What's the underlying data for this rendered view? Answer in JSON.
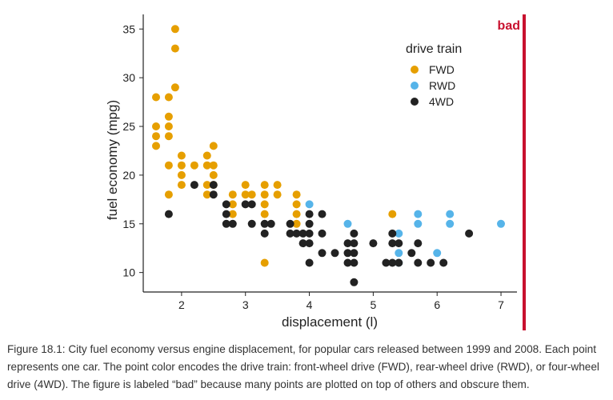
{
  "chart_data": {
    "type": "scatter",
    "title": "",
    "xlabel": "displacement (l)",
    "ylabel": "fuel economy (mpg)",
    "xlim": [
      1.4,
      7.25
    ],
    "ylim": [
      8,
      36.5
    ],
    "xticks": [
      2,
      3,
      4,
      5,
      6,
      7
    ],
    "yticks": [
      10,
      15,
      20,
      25,
      30,
      35
    ],
    "grid": false,
    "legend": {
      "title": "drive train",
      "position": "top-right"
    },
    "badge": {
      "label": "bad",
      "color": "#c8102e"
    },
    "series": [
      {
        "name": "FWD",
        "color": "#e69f00",
        "points": [
          [
            1.6,
            28
          ],
          [
            1.6,
            25
          ],
          [
            1.6,
            24
          ],
          [
            1.6,
            23
          ],
          [
            1.8,
            28
          ],
          [
            1.8,
            26
          ],
          [
            1.8,
            25
          ],
          [
            1.8,
            24
          ],
          [
            1.8,
            21
          ],
          [
            1.8,
            18
          ],
          [
            1.9,
            35
          ],
          [
            1.9,
            33
          ],
          [
            1.9,
            29
          ],
          [
            2.0,
            22
          ],
          [
            2.0,
            21
          ],
          [
            2.0,
            20
          ],
          [
            2.0,
            19
          ],
          [
            2.2,
            21
          ],
          [
            2.4,
            22
          ],
          [
            2.4,
            21
          ],
          [
            2.4,
            19
          ],
          [
            2.4,
            18
          ],
          [
            2.5,
            23
          ],
          [
            2.5,
            21
          ],
          [
            2.5,
            20
          ],
          [
            2.5,
            19
          ],
          [
            2.8,
            18
          ],
          [
            2.8,
            17
          ],
          [
            2.8,
            16
          ],
          [
            3.0,
            19
          ],
          [
            3.0,
            18
          ],
          [
            3.1,
            18
          ],
          [
            3.3,
            19
          ],
          [
            3.3,
            18
          ],
          [
            3.3,
            17
          ],
          [
            3.3,
            16
          ],
          [
            3.3,
            11
          ],
          [
            3.5,
            19
          ],
          [
            3.5,
            18
          ],
          [
            3.8,
            18
          ],
          [
            3.8,
            17
          ],
          [
            3.8,
            16
          ],
          [
            3.8,
            15
          ],
          [
            5.3,
            16
          ]
        ]
      },
      {
        "name": "RWD",
        "color": "#56b4e9",
        "points": [
          [
            4.0,
            17
          ],
          [
            4.6,
            15
          ],
          [
            5.4,
            14
          ],
          [
            5.4,
            12
          ],
          [
            5.4,
            11
          ],
          [
            5.7,
            16
          ],
          [
            5.7,
            15
          ],
          [
            6.0,
            12
          ],
          [
            6.2,
            16
          ],
          [
            6.2,
            15
          ],
          [
            7.0,
            15
          ]
        ]
      },
      {
        "name": "4WD",
        "color": "#222222",
        "points": [
          [
            1.8,
            16
          ],
          [
            2.2,
            19
          ],
          [
            2.5,
            19
          ],
          [
            2.5,
            18
          ],
          [
            2.7,
            17
          ],
          [
            2.7,
            16
          ],
          [
            2.7,
            15
          ],
          [
            2.8,
            15
          ],
          [
            3.0,
            17
          ],
          [
            3.1,
            17
          ],
          [
            3.1,
            15
          ],
          [
            3.3,
            15
          ],
          [
            3.3,
            14
          ],
          [
            3.4,
            15
          ],
          [
            3.7,
            15
          ],
          [
            3.7,
            14
          ],
          [
            3.8,
            14
          ],
          [
            3.9,
            14
          ],
          [
            3.9,
            13
          ],
          [
            4.0,
            16
          ],
          [
            4.0,
            15
          ],
          [
            4.0,
            14
          ],
          [
            4.0,
            13
          ],
          [
            4.0,
            11
          ],
          [
            4.2,
            16
          ],
          [
            4.2,
            14
          ],
          [
            4.2,
            12
          ],
          [
            4.4,
            12
          ],
          [
            4.6,
            13
          ],
          [
            4.6,
            12
          ],
          [
            4.6,
            11
          ],
          [
            4.7,
            14
          ],
          [
            4.7,
            13
          ],
          [
            4.7,
            12
          ],
          [
            4.7,
            11
          ],
          [
            4.7,
            9
          ],
          [
            5.0,
            13
          ],
          [
            5.2,
            11
          ],
          [
            5.3,
            14
          ],
          [
            5.3,
            13
          ],
          [
            5.3,
            11
          ],
          [
            5.4,
            13
          ],
          [
            5.4,
            11
          ],
          [
            5.6,
            12
          ],
          [
            5.7,
            13
          ],
          [
            5.7,
            11
          ],
          [
            5.9,
            11
          ],
          [
            6.1,
            11
          ],
          [
            6.5,
            14
          ]
        ]
      }
    ]
  },
  "caption": "Figure 18.1: City fuel economy versus engine displacement, for popular cars released between 1999 and 2008. Each point represents one car. The point color encodes the drive train: front-wheel drive (FWD), rear-wheel drive (RWD), or four-wheel drive (4WD). The figure is labeled “bad” because many points are plotted on top of others and obscure them."
}
